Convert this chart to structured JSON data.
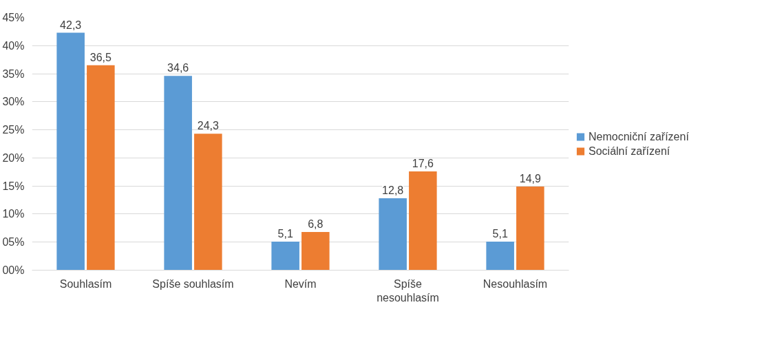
{
  "chart_data": {
    "type": "bar",
    "categories": [
      "Souhlasím",
      "Spíše souhlasím",
      "Nevím",
      "Spíše nesouhlasím",
      "Nesouhlasím"
    ],
    "series": [
      {
        "name": "Nemocniční zařízení",
        "color": "#5b9bd5",
        "values": [
          42.3,
          34.6,
          5.1,
          12.8,
          5.1
        ],
        "value_labels": [
          "42,3",
          "34,6",
          "5,1",
          "12,8",
          "5,1"
        ]
      },
      {
        "name": "Sociální zařízení",
        "color": "#ed7d31",
        "values": [
          36.5,
          24.3,
          6.8,
          17.6,
          14.9
        ],
        "value_labels": [
          "36,5",
          "24,3",
          "6,8",
          "17,6",
          "14,9"
        ]
      }
    ],
    "ylim": [
      0,
      45
    ],
    "yticks": [
      {
        "value": 0,
        "label": "00%"
      },
      {
        "value": 5,
        "label": "05%"
      },
      {
        "value": 10,
        "label": "10%"
      },
      {
        "value": 15,
        "label": "15%"
      },
      {
        "value": 20,
        "label": "20%"
      },
      {
        "value": 25,
        "label": "25%"
      },
      {
        "value": 30,
        "label": "30%"
      },
      {
        "value": 35,
        "label": "35%"
      },
      {
        "value": 40,
        "label": "40%"
      },
      {
        "value": 45,
        "label": "45%"
      }
    ],
    "grid": "y",
    "legend": "right"
  }
}
